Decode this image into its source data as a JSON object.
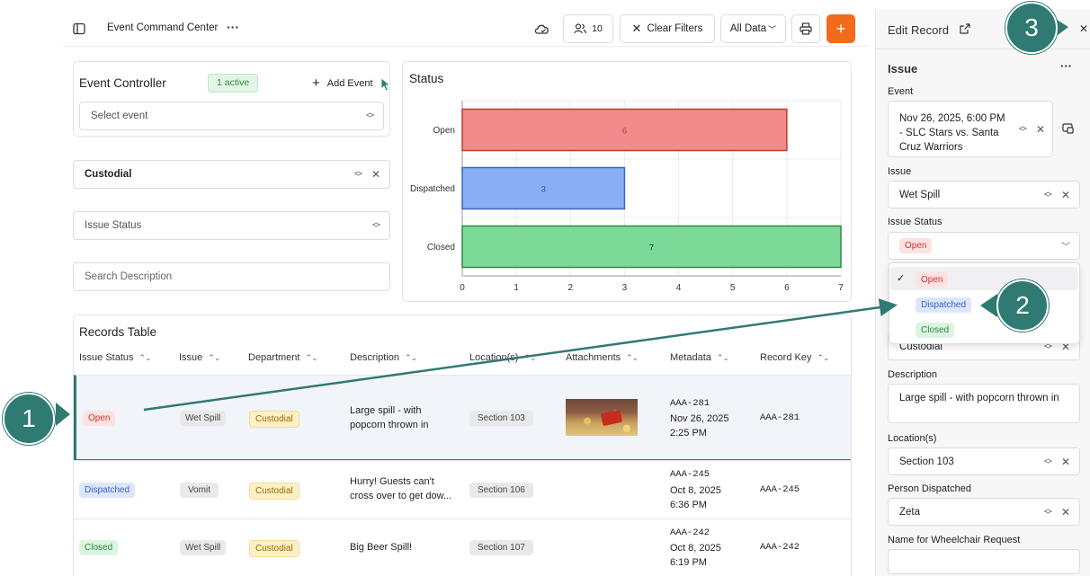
{
  "topbar": {
    "title": "Event Command Center",
    "users_count": "10",
    "clear_filters": "Clear Filters",
    "data_select": "All Data",
    "add_label": "+"
  },
  "event_controller": {
    "title": "Event Controller",
    "active_badge": "1 active",
    "add_event": "Add Event",
    "select_placeholder": "Select event"
  },
  "filters": {
    "department": "Custodial",
    "issue_status_placeholder": "Issue Status",
    "search_placeholder": "Search Description"
  },
  "chart_data": {
    "type": "bar",
    "orientation": "horizontal",
    "title": "Status",
    "categories": [
      "Open",
      "Dispatched",
      "Closed"
    ],
    "values": [
      6,
      3,
      7
    ],
    "colors": [
      "#f28b8b",
      "#8aaef5",
      "#7ddb9a"
    ],
    "border_colors": [
      "#c0392b",
      "#3b63c8",
      "#2b8a3e"
    ],
    "label_colors": [
      "#c0392b",
      "#2a4fb0",
      "#222222"
    ],
    "xlim": [
      0,
      7
    ],
    "xticks": [
      "0",
      "1",
      "2",
      "3",
      "4",
      "5",
      "6",
      "7"
    ],
    "grid": true
  },
  "table": {
    "title": "Records Table",
    "columns": [
      "Issue Status",
      "Issue",
      "Department",
      "Description",
      "Location(s)",
      "Attachments",
      "Metadata",
      "Record Key"
    ],
    "rows": [
      {
        "status": "Open",
        "issue": "Wet Spill",
        "department": "Custodial",
        "description": "Large spill - with popcorn thrown in",
        "location": "Section 103",
        "meta_key": "AAA-281",
        "meta_date": "Nov 26, 2025",
        "meta_time": "2:25 PM",
        "record_key": "AAA-281"
      },
      {
        "status": "Dispatched",
        "issue": "Vomit",
        "department": "Custodial",
        "description": "Hurry! Guests can't cross over to get dow...",
        "location": "Section 106",
        "meta_key": "AAA-245",
        "meta_date": "Oct 8, 2025",
        "meta_time": "6:36 PM",
        "record_key": "AAA-245"
      },
      {
        "status": "Closed",
        "issue": "Wet Spill",
        "department": "Custodial",
        "description": "Big Beer Spill!",
        "location": "Section 107",
        "meta_key": "AAA-242",
        "meta_date": "Oct 8, 2025",
        "meta_time": "6:19 PM",
        "record_key": "AAA-242"
      }
    ]
  },
  "panel": {
    "title": "Edit Record",
    "section": "Issue",
    "event_label": "Event",
    "event_value_1": "Nov 26, 2025, 6:00 PM",
    "event_value_2": "- SLC Stars vs. Santa",
    "event_value_3": "Cruz Warriors",
    "issue_label": "Issue",
    "issue_value": "Wet Spill",
    "status_label": "Issue Status",
    "status_value": "Open",
    "dropdown_options": [
      "Open",
      "Dispatched",
      "Closed"
    ],
    "department_value": "Custodial",
    "description_label": "Description",
    "description_value": "Large spill - with popcorn thrown in",
    "location_label": "Location(s)",
    "location_value": "Section 103",
    "person_label": "Person Dispatched",
    "person_value": "Zeta",
    "wheelchair_label": "Name for Wheelchair Request"
  },
  "callouts": [
    "1",
    "2",
    "3"
  ]
}
